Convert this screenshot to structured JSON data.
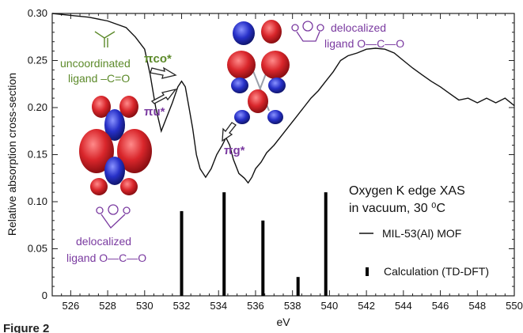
{
  "chart_data": {
    "type": "line",
    "xlabel": "eV",
    "ylabel": "Relative absorption cross-section",
    "xlim": [
      525,
      550
    ],
    "ylim": [
      0,
      0.3
    ],
    "x_ticks": [
      526,
      528,
      530,
      532,
      534,
      536,
      538,
      540,
      542,
      544,
      546,
      548,
      550
    ],
    "y_ticks": [
      0,
      0.05,
      0.1,
      0.15,
      0.2,
      0.25,
      0.3
    ],
    "x_tick_labels": [
      "526",
      "528",
      "530",
      "532",
      "534",
      "536",
      "538",
      "540",
      "542",
      "544",
      "546",
      "548",
      "550"
    ],
    "y_tick_labels": [
      "0",
      "0.05",
      "0.10",
      "0.15",
      "0.20",
      "0.25",
      "0.30"
    ],
    "grid": false,
    "legend_position": "right",
    "legend_title": [
      "Oxygen K edge XAS",
      "in vacuum, 30 ⁰C"
    ],
    "series": [
      {
        "name": "MIL-53(Al) MOF",
        "kind": "line",
        "color": "#111111",
        "x": [
          525.0,
          526.0,
          527.0,
          528.0,
          529.0,
          529.5,
          530.0,
          530.3,
          530.6,
          530.9,
          531.2,
          531.5,
          531.8,
          532.0,
          532.2,
          532.4,
          532.6,
          532.8,
          533.0,
          533.3,
          533.6,
          533.9,
          534.2,
          534.4,
          534.6,
          534.8,
          535.1,
          535.4,
          535.6,
          535.8,
          536.0,
          536.3,
          536.6,
          537.0,
          537.4,
          537.8,
          538.2,
          538.6,
          539.0,
          539.4,
          539.8,
          540.2,
          540.6,
          541.0,
          541.5,
          542.0,
          542.5,
          543.0,
          543.5,
          544.0,
          544.5,
          545.0,
          545.5,
          546.0,
          546.5,
          547.0,
          547.5,
          548.0,
          548.5,
          549.0,
          549.5,
          550.0
        ],
        "y": [
          0.3,
          0.298,
          0.296,
          0.292,
          0.285,
          0.275,
          0.262,
          0.235,
          0.2,
          0.175,
          0.19,
          0.205,
          0.222,
          0.228,
          0.222,
          0.2,
          0.178,
          0.15,
          0.135,
          0.126,
          0.135,
          0.15,
          0.16,
          0.168,
          0.16,
          0.145,
          0.13,
          0.125,
          0.12,
          0.126,
          0.135,
          0.142,
          0.152,
          0.16,
          0.17,
          0.18,
          0.19,
          0.2,
          0.21,
          0.218,
          0.228,
          0.238,
          0.25,
          0.255,
          0.258,
          0.262,
          0.263,
          0.262,
          0.258,
          0.25,
          0.242,
          0.235,
          0.228,
          0.222,
          0.215,
          0.208,
          0.21,
          0.205,
          0.21,
          0.205,
          0.21,
          0.202
        ]
      },
      {
        "name": "Calculation (TD-DFT)",
        "kind": "stick",
        "color": "#000000",
        "x": [
          532.0,
          534.3,
          536.4,
          538.3,
          539.8
        ],
        "y": [
          0.09,
          0.11,
          0.08,
          0.02,
          0.11
        ]
      }
    ],
    "annotations": {
      "pi_co": "πco*",
      "pi_u": "πu*",
      "pi_g": "πg*",
      "uncoordinated_line1": "uncoordinated",
      "uncoordinated_line2": "ligand –C=O",
      "delocalized_right_line1": "delocalized",
      "delocalized_right_line2": "ligand O—C—O",
      "delocalized_left_line1": "delocalized",
      "delocalized_left_line2": "ligand O—C—O",
      "bottom_caption": "Figure 2"
    },
    "colors": {
      "orbital_red": "#d9262b",
      "orbital_blue": "#2730c8",
      "label_purple": "#7a3aa0",
      "label_green": "#5c8a2a"
    }
  }
}
